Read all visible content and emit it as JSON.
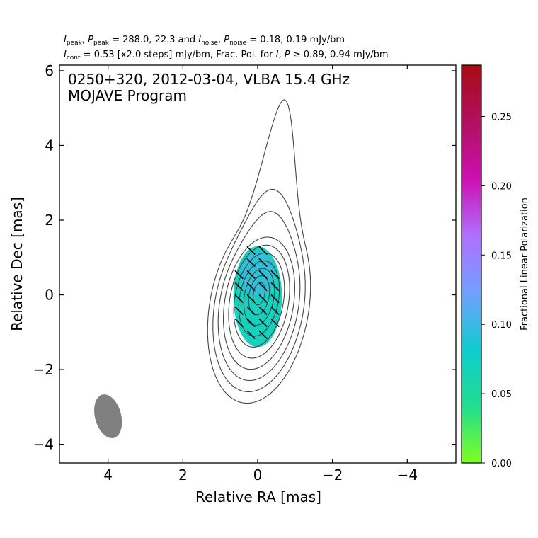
{
  "header": {
    "line1": {
      "i_peak_label": "I",
      "i_peak_sub": "peak",
      "p_peak_label": "P",
      "p_peak_sub": "peak",
      "peak_values": "= 288.0, 22.3 and",
      "i_noise_label": "I",
      "i_noise_sub": "noise",
      "p_noise_label": "P",
      "p_noise_sub": "noise",
      "noise_values": "= 0.18, 0.19 mJy/bm"
    },
    "line2": {
      "i_cont_label": "I",
      "i_cont_sub": "cont",
      "cont_text": "= 0.53 [x2.0 steps] mJy/bm, Frac. Pol. for",
      "i_label": "I",
      "p_label": "P",
      "threshold_text": "≥  0.89, 0.94 mJy/bm"
    }
  },
  "chart_data": {
    "type": "contour",
    "source_title_line1": "0250+320, 2012-03-04, VLBA 15.4 GHz",
    "source_title_line2": "MOJAVE Program",
    "xlabel": "Relative RA [mas]",
    "ylabel": "Relative Dec [mas]",
    "xlim": [
      5.3,
      -5.3
    ],
    "ylim": [
      -4.5,
      6.15
    ],
    "xticks": [
      4,
      2,
      0,
      -2,
      -4
    ],
    "xtick_labels": [
      "4",
      "2",
      "0",
      "−2",
      "−4"
    ],
    "yticks": [
      6,
      4,
      2,
      0,
      -2,
      -4
    ],
    "ytick_labels": [
      "6",
      "4",
      "2",
      "0",
      "−2",
      "−4"
    ],
    "contours_mJy_per_beam": [
      0.53,
      1.06,
      2.12,
      4.24,
      8.48,
      16.96,
      33.92,
      67.84,
      135.68,
      271.36
    ],
    "beam": {
      "ra_center": 4.0,
      "dec_center": -3.25,
      "major_mas": 1.2,
      "minor_mas": 0.7,
      "pa_deg": -15
    },
    "fractional_polarization_region": {
      "ra_center": 0.0,
      "dec_center": -0.05,
      "semi_ra": 0.65,
      "semi_dec": 1.35,
      "value": 0.07
    },
    "colorbar": {
      "label": "Fractional Linear Polarization",
      "range": [
        0.0,
        0.287
      ],
      "ticks": [
        0.0,
        0.05,
        0.1,
        0.15,
        0.2,
        0.25
      ],
      "tick_labels": [
        "0.00",
        "0.05",
        "0.10",
        "0.15",
        "0.20",
        "0.25"
      ],
      "colors": [
        "#80ff20",
        "#20dd90",
        "#10ccd0",
        "#70a0ff",
        "#b070ff",
        "#cc10b0",
        "#b01060",
        "#aa0a10"
      ]
    },
    "evpa_ticks_deg": 45,
    "grid": false
  }
}
